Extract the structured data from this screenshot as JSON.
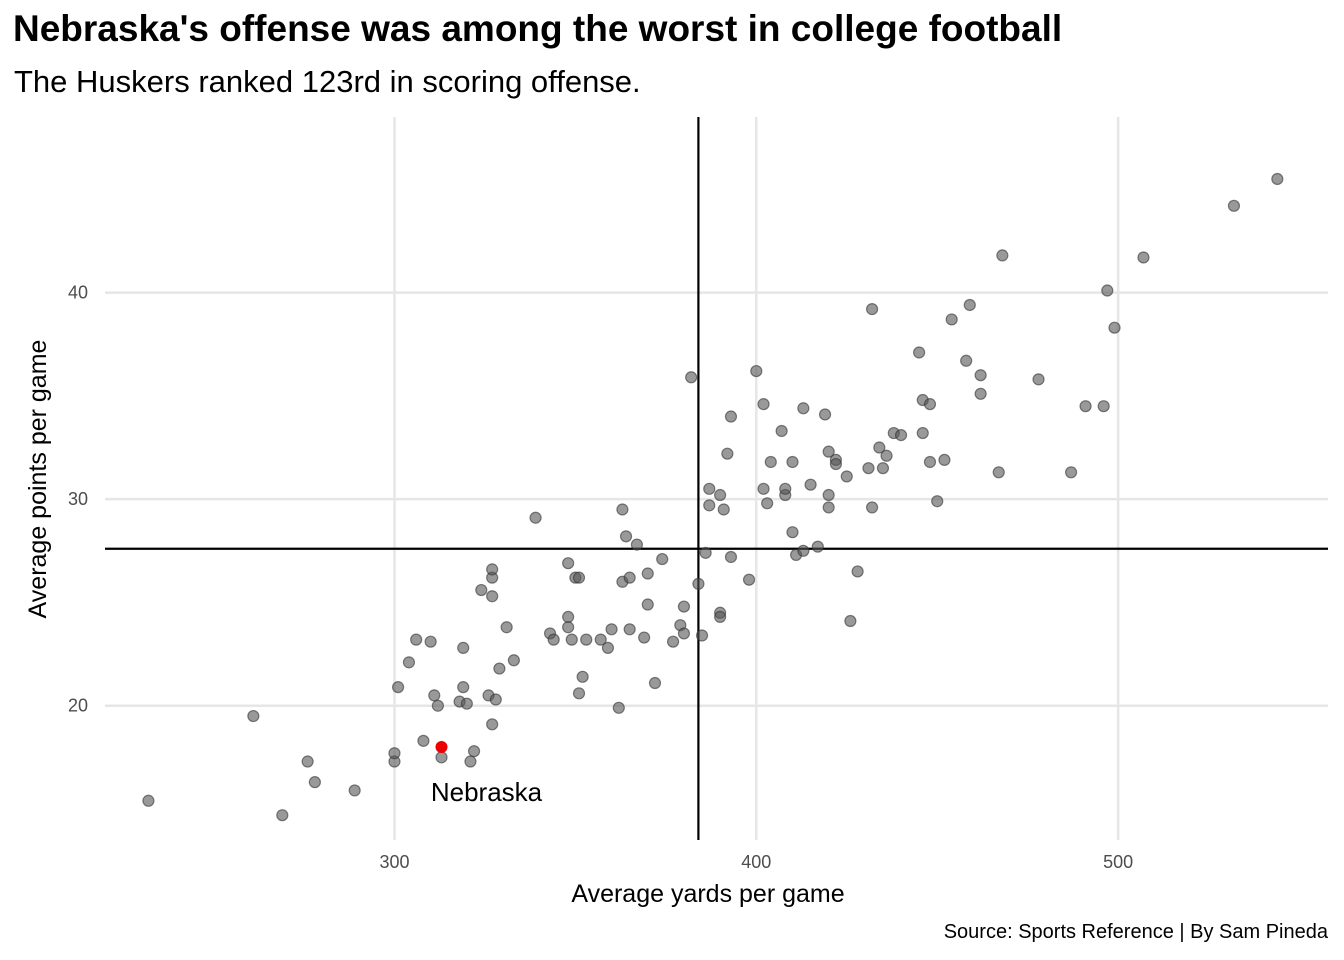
{
  "chart_data": {
    "type": "scatter",
    "title": "Nebraska's offense was among the worst in college football",
    "subtitle": "The Huskers ranked 123rd in scoring offense.",
    "xlabel": "Average yards per game",
    "ylabel": "Average points per game",
    "caption": "Source: Sports Reference | By Sam Pineda",
    "xlim": [
      220,
      558
    ],
    "ylim": [
      13.5,
      48.5
    ],
    "xticks": [
      300,
      400,
      500
    ],
    "yticks": [
      20,
      30,
      40
    ],
    "grid": true,
    "reference_lines": {
      "x_mean": 384,
      "y_mean": 27.6
    },
    "point_color": "#555555",
    "highlight_color": "#ee0000",
    "highlight": {
      "x": 313,
      "y": 18.0,
      "label": "Nebraska"
    },
    "points": [
      [
        232,
        15.4
      ],
      [
        261,
        19.5
      ],
      [
        269,
        14.7
      ],
      [
        276,
        17.3
      ],
      [
        278,
        16.3
      ],
      [
        289,
        15.9
      ],
      [
        300,
        17.3
      ],
      [
        300,
        17.7
      ],
      [
        301,
        20.9
      ],
      [
        304,
        22.1
      ],
      [
        306,
        23.2
      ],
      [
        308,
        18.3
      ],
      [
        310,
        23.1
      ],
      [
        311,
        20.5
      ],
      [
        312,
        20.0
      ],
      [
        313,
        17.5
      ],
      [
        318,
        20.2
      ],
      [
        319,
        20.9
      ],
      [
        319,
        22.8
      ],
      [
        320,
        20.1
      ],
      [
        321,
        17.3
      ],
      [
        322,
        17.8
      ],
      [
        324,
        25.6
      ],
      [
        326,
        20.5
      ],
      [
        327,
        19.1
      ],
      [
        327,
        26.2
      ],
      [
        327,
        26.6
      ],
      [
        327,
        25.3
      ],
      [
        328,
        20.3
      ],
      [
        329,
        21.8
      ],
      [
        331,
        23.8
      ],
      [
        333,
        22.2
      ],
      [
        339,
        29.1
      ],
      [
        343,
        23.5
      ],
      [
        344,
        23.2
      ],
      [
        348,
        26.9
      ],
      [
        348,
        24.3
      ],
      [
        348,
        23.8
      ],
      [
        349,
        23.2
      ],
      [
        350,
        26.2
      ],
      [
        351,
        26.2
      ],
      [
        351,
        20.6
      ],
      [
        352,
        21.4
      ],
      [
        353,
        23.2
      ],
      [
        357,
        23.2
      ],
      [
        359,
        22.8
      ],
      [
        360,
        23.7
      ],
      [
        362,
        19.9
      ],
      [
        363,
        29.5
      ],
      [
        363,
        26.0
      ],
      [
        364,
        28.2
      ],
      [
        365,
        26.2
      ],
      [
        365,
        23.7
      ],
      [
        367,
        27.8
      ],
      [
        369,
        23.3
      ],
      [
        370,
        24.9
      ],
      [
        370,
        26.4
      ],
      [
        372,
        21.1
      ],
      [
        374,
        27.1
      ],
      [
        377,
        23.1
      ],
      [
        379,
        23.9
      ],
      [
        380,
        24.8
      ],
      [
        380,
        23.5
      ],
      [
        382,
        35.9
      ],
      [
        384,
        25.9
      ],
      [
        385,
        23.4
      ],
      [
        386,
        27.4
      ],
      [
        387,
        29.7
      ],
      [
        387,
        30.5
      ],
      [
        390,
        30.2
      ],
      [
        390,
        24.5
      ],
      [
        390,
        24.3
      ],
      [
        391,
        29.5
      ],
      [
        392,
        32.2
      ],
      [
        393,
        34.0
      ],
      [
        393,
        27.2
      ],
      [
        398,
        26.1
      ],
      [
        400,
        36.2
      ],
      [
        402,
        34.6
      ],
      [
        402,
        30.5
      ],
      [
        403,
        29.8
      ],
      [
        404,
        31.8
      ],
      [
        407,
        33.3
      ],
      [
        408,
        30.2
      ],
      [
        408,
        30.5
      ],
      [
        410,
        31.8
      ],
      [
        410,
        28.4
      ],
      [
        411,
        27.3
      ],
      [
        413,
        34.4
      ],
      [
        413,
        27.5
      ],
      [
        415,
        30.7
      ],
      [
        417,
        27.7
      ],
      [
        419,
        34.1
      ],
      [
        420,
        32.3
      ],
      [
        420,
        30.2
      ],
      [
        420,
        29.6
      ],
      [
        422,
        31.9
      ],
      [
        422,
        31.7
      ],
      [
        425,
        31.1
      ],
      [
        426,
        24.1
      ],
      [
        428,
        26.5
      ],
      [
        431,
        31.5
      ],
      [
        432,
        29.6
      ],
      [
        432,
        39.2
      ],
      [
        434,
        32.5
      ],
      [
        435,
        31.5
      ],
      [
        436,
        32.1
      ],
      [
        438,
        33.2
      ],
      [
        440,
        33.1
      ],
      [
        445,
        37.1
      ],
      [
        446,
        34.8
      ],
      [
        446,
        33.2
      ],
      [
        448,
        34.6
      ],
      [
        448,
        31.8
      ],
      [
        450,
        29.9
      ],
      [
        452,
        31.9
      ],
      [
        454,
        38.7
      ],
      [
        458,
        36.7
      ],
      [
        459,
        39.4
      ],
      [
        462,
        36.0
      ],
      [
        462,
        35.1
      ],
      [
        467,
        31.3
      ],
      [
        468,
        41.8
      ],
      [
        478,
        35.8
      ],
      [
        487,
        31.3
      ],
      [
        491,
        34.5
      ],
      [
        496,
        34.5
      ],
      [
        497,
        40.1
      ],
      [
        499,
        38.3
      ],
      [
        507,
        41.7
      ],
      [
        532,
        44.2
      ],
      [
        544,
        45.5
      ]
    ]
  }
}
